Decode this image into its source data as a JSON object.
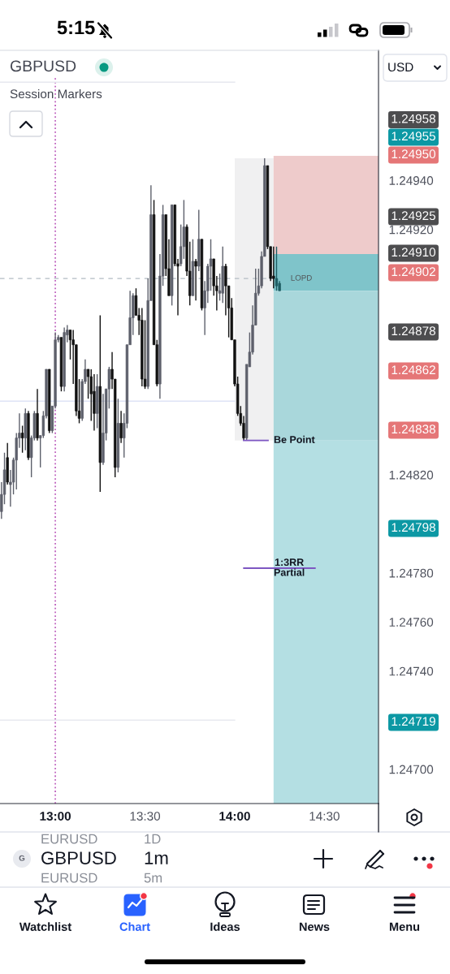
{
  "chart_data": {
    "type": "candlestick",
    "title": "GBPUSD",
    "subtitle": "Session Markers",
    "x": [
      12.7,
      12.7167,
      12.7333,
      12.75,
      12.7667,
      12.7833,
      12.8,
      12.8167,
      12.8333,
      12.85,
      12.8667,
      12.8833,
      12.9,
      12.9167,
      12.9333,
      12.95,
      12.9667,
      12.9833,
      13,
      13.0167,
      13.0333,
      13.05,
      13.0667,
      13.0833,
      13.1,
      13.1167,
      13.1333,
      13.15,
      13.1667,
      13.1833,
      13.2,
      13.2167,
      13.2333,
      13.25,
      13.2667,
      13.2833,
      13.3,
      13.3167,
      13.3333,
      13.35,
      13.3667,
      13.3833,
      13.4,
      13.4167,
      13.4333,
      13.45,
      13.4667,
      13.4833,
      13.5,
      13.5167,
      13.5333,
      13.55,
      13.5667,
      13.5833,
      13.6,
      13.6167,
      13.6333,
      13.65,
      13.6667,
      13.6833,
      13.7,
      13.7167,
      13.7333,
      13.75,
      13.7667,
      13.7833,
      13.8,
      13.8167,
      13.8333,
      13.85,
      13.8667,
      13.8833,
      13.9,
      13.9167,
      13.9333,
      13.95,
      13.9667,
      13.9833,
      14,
      14.0167,
      14.0333,
      14.05,
      14.0667,
      14.0833,
      14.1,
      14.1167,
      14.1333,
      14.15,
      14.1667,
      14.1833,
      14.2,
      14.2167,
      14.2333,
      14.25
    ],
    "ohlc": [
      [
        1.24805,
        1.24817,
        1.24802,
        1.24812
      ],
      [
        1.24812,
        1.24829,
        1.24808,
        1.24822
      ],
      [
        1.24827,
        1.24833,
        1.24816,
        1.24817
      ],
      [
        1.24816,
        1.24822,
        1.24807,
        1.24817
      ],
      [
        1.24817,
        1.24827,
        1.24812,
        1.24826
      ],
      [
        1.24826,
        1.24837,
        1.24814,
        1.24835
      ],
      [
        1.24835,
        1.24845,
        1.24831,
        1.24837
      ],
      [
        1.24837,
        1.2484,
        1.24829,
        1.24835
      ],
      [
        1.24835,
        1.24847,
        1.2483,
        1.24845
      ],
      [
        1.24845,
        1.24846,
        1.24826,
        1.24827
      ],
      [
        1.24827,
        1.24836,
        1.24819,
        1.24835
      ],
      [
        1.24835,
        1.24846,
        1.24834,
        1.24845
      ],
      [
        1.24845,
        1.24855,
        1.24834,
        1.24835
      ],
      [
        1.24835,
        1.24836,
        1.24823,
        1.24836
      ],
      [
        1.24836,
        1.24846,
        1.24835,
        1.24844
      ],
      [
        1.24844,
        1.24863,
        1.24843,
        1.24863
      ],
      [
        1.24863,
        1.24863,
        1.24837,
        1.24838
      ],
      [
        1.24838,
        1.24848,
        1.24837,
        1.24848
      ],
      [
        1.24848,
        1.24878,
        1.24847,
        1.24875
      ],
      [
        1.24875,
        1.24877,
        1.24874,
        1.24876
      ],
      [
        1.24876,
        1.24876,
        1.24854,
        1.24856
      ],
      [
        1.24856,
        1.2488,
        1.24854,
        1.24878
      ],
      [
        1.24877,
        1.24881,
        1.24874,
        1.24879
      ],
      [
        1.24879,
        1.24879,
        1.24867,
        1.24875
      ],
      [
        1.24875,
        1.24879,
        1.24857,
        1.24873
      ],
      [
        1.24873,
        1.24873,
        1.24844,
        1.24846
      ],
      [
        1.24846,
        1.24859,
        1.24841,
        1.24843
      ],
      [
        1.24843,
        1.24859,
        1.24842,
        1.24858
      ],
      [
        1.24858,
        1.24867,
        1.24857,
        1.24863
      ],
      [
        1.24863,
        1.24863,
        1.24851,
        1.2486
      ],
      [
        1.2486,
        1.24863,
        1.24842,
        1.24853
      ],
      [
        1.24854,
        1.24861,
        1.24838,
        1.24845
      ],
      [
        1.24845,
        1.24861,
        1.24839,
        1.24856
      ],
      [
        1.24856,
        1.24885,
        1.24813,
        1.24825
      ],
      [
        1.24825,
        1.24853,
        1.24824,
        1.24837
      ],
      [
        1.24837,
        1.24855,
        1.24834,
        1.24855
      ],
      [
        1.24855,
        1.24864,
        1.24847,
        1.24863
      ],
      [
        1.24863,
        1.2487,
        1.24855,
        1.24859
      ],
      [
        1.24859,
        1.24859,
        1.24819,
        1.24823
      ],
      [
        1.24823,
        1.24851,
        1.24821,
        1.24841
      ],
      [
        1.24841,
        1.24846,
        1.24833,
        1.24835
      ],
      [
        1.24835,
        1.24845,
        1.24827,
        1.24841
      ],
      [
        1.24841,
        1.24873,
        1.24839,
        1.24873
      ],
      [
        1.24873,
        1.24895,
        1.24873,
        1.24884
      ],
      [
        1.24884,
        1.24894,
        1.24877,
        1.24893
      ],
      [
        1.24893,
        1.24896,
        1.24885,
        1.24885
      ],
      [
        1.24885,
        1.24888,
        1.24877,
        1.24883
      ],
      [
        1.24883,
        1.24888,
        1.24856,
        1.24859
      ],
      [
        1.24859,
        1.24883,
        1.24855,
        1.24856
      ],
      [
        1.24856,
        1.249,
        1.24855,
        1.24891
      ],
      [
        1.24891,
        1.24938,
        1.24891,
        1.24926
      ],
      [
        1.24926,
        1.24932,
        1.24873,
        1.24873
      ],
      [
        1.24873,
        1.24875,
        1.24856,
        1.24857
      ],
      [
        1.24857,
        1.2491,
        1.24851,
        1.24901
      ],
      [
        1.24901,
        1.2493,
        1.24897,
        1.24926
      ],
      [
        1.24926,
        1.24926,
        1.24901,
        1.24904
      ],
      [
        1.24904,
        1.24916,
        1.24893,
        1.24893
      ],
      [
        1.24893,
        1.2493,
        1.24889,
        1.2493
      ],
      [
        1.2493,
        1.2493,
        1.24905,
        1.24906
      ],
      [
        1.24906,
        1.24908,
        1.24885,
        1.24905
      ],
      [
        1.24906,
        1.24922,
        1.24905,
        1.24913
      ],
      [
        1.24913,
        1.24932,
        1.24908,
        1.24921
      ],
      [
        1.24921,
        1.24922,
        1.24901,
        1.24903
      ],
      [
        1.24903,
        1.24915,
        1.24889,
        1.24893
      ],
      [
        1.24893,
        1.24916,
        1.24893,
        1.24907
      ],
      [
        1.24907,
        1.24908,
        1.24891,
        1.24905
      ],
      [
        1.24905,
        1.24928,
        1.24903,
        1.24916
      ],
      [
        1.24916,
        1.24916,
        1.24887,
        1.24888
      ],
      [
        1.24888,
        1.24899,
        1.24877,
        1.24895
      ],
      [
        1.24895,
        1.24906,
        1.2489,
        1.24905
      ],
      [
        1.24905,
        1.24916,
        1.24895,
        1.24908
      ],
      [
        1.24908,
        1.24908,
        1.24893,
        1.24897
      ],
      [
        1.24897,
        1.24901,
        1.24887,
        1.24895
      ],
      [
        1.24894,
        1.24902,
        1.24891,
        1.24895
      ],
      [
        1.24894,
        1.24913,
        1.2489,
        1.24905
      ],
      [
        1.24905,
        1.24906,
        1.24885,
        1.24897
      ],
      [
        1.24897,
        1.24897,
        1.24876,
        1.24888
      ],
      [
        1.24888,
        1.24892,
        1.24875,
        1.24875
      ],
      [
        1.24875,
        1.24875,
        1.24856,
        1.24857
      ],
      [
        1.24857,
        1.2486,
        1.24844,
        1.24845
      ],
      [
        1.24845,
        1.24848,
        1.2484,
        1.24841
      ],
      [
        1.24841,
        1.24844,
        1.24834,
        1.24835
      ],
      [
        1.24835,
        1.24865,
        1.24834,
        1.24865
      ],
      [
        1.24864,
        1.24878,
        1.24864,
        1.2487
      ],
      [
        1.2487,
        1.24889,
        1.24869,
        1.24881
      ],
      [
        1.24881,
        1.24904,
        1.24881,
        1.24894
      ],
      [
        1.24894,
        1.24904,
        1.24893,
        1.24897
      ],
      [
        1.24897,
        1.24911,
        1.24896,
        1.24909
      ],
      [
        1.24909,
        1.24949,
        1.24909,
        1.24946
      ],
      [
        1.24946,
        1.24946,
        1.24912,
        1.24913
      ],
      [
        1.24913,
        1.24913,
        1.24899,
        1.249
      ],
      [
        1.24901,
        1.24913,
        1.24896,
        1.249
      ],
      [
        1.249,
        1.24913,
        1.24895,
        1.24897
      ],
      [
        1.24898,
        1.24899,
        1.24895,
        1.24895
      ]
    ],
    "colors": [
      "#5d606b",
      "#5d606b",
      "#111111",
      "#5d606b",
      "#5d606b",
      "#5d606b",
      "#5d606b",
      "#111111",
      "#5d606b",
      "#111111",
      "#5d606b",
      "#5d606b",
      "#111111",
      "#5d606b",
      "#5d606b",
      "#5d606b",
      "#111111",
      "#5d606b",
      "#5d606b",
      "#5d606b",
      "#111111",
      "#5d606b",
      "#5d606b",
      "#111111",
      "#111111",
      "#111111",
      "#111111",
      "#5d606b",
      "#5d606b",
      "#111111",
      "#111111",
      "#111111",
      "#5d606b",
      "#111111",
      "#5d606b",
      "#5d606b",
      "#5d606b",
      "#111111",
      "#111111",
      "#5d606b",
      "#111111",
      "#5d606b",
      "#5d606b",
      "#5d606b",
      "#5d606b",
      "#111111",
      "#111111",
      "#111111",
      "#111111",
      "#5d606b",
      "#5d606b",
      "#111111",
      "#111111",
      "#5d606b",
      "#5d606b",
      "#111111",
      "#111111",
      "#5d606b",
      "#111111",
      "#111111",
      "#5d606b",
      "#5d606b",
      "#111111",
      "#111111",
      "#5d606b",
      "#111111",
      "#5d606b",
      "#111111",
      "#5d606b",
      "#5d606b",
      "#5d606b",
      "#111111",
      "#111111",
      "#5d606b",
      "#5d606b",
      "#111111",
      "#111111",
      "#111111",
      "#111111",
      "#111111",
      "#111111",
      "#111111",
      "#5d606b",
      "#5d606b",
      "#5d606b",
      "#5d606b",
      "#5d606b",
      "#5d606b",
      "#5d606b",
      "#111111",
      "#111111",
      "#111111",
      "#1e5d63",
      "#1e5d63"
    ],
    "xlim": [
      12.6917,
      14.8017
    ],
    "ylim": [
      1.24686,
      1.24993
    ],
    "xticks": [
      {
        "value": 13,
        "label": "13:00"
      },
      {
        "value": 13.5,
        "label": "13:30"
      },
      {
        "value": 14,
        "label": "14:00"
      },
      {
        "value": 14.5,
        "label": "14:30"
      }
    ],
    "yticks": [
      {
        "value": 1.2494,
        "label": "1.24940"
      },
      {
        "value": 1.2492,
        "label": "1.24920"
      },
      {
        "value": 1.2482,
        "label": "1.24820"
      },
      {
        "value": 1.2478,
        "label": "1.24780"
      },
      {
        "value": 1.2476,
        "label": "1.24760"
      },
      {
        "value": 1.2474,
        "label": "1.24740"
      },
      {
        "value": 1.247,
        "label": "1.24700"
      }
    ],
    "bands": [
      {
        "axis": "x",
        "from": 14,
        "to": 14.2167,
        "color": "#f0f0f1"
      },
      {
        "axis": "y",
        "from": 1.2495,
        "to": 1.2491,
        "color": "#eecbcb"
      },
      {
        "axis": "y",
        "from": 1.2491,
        "to": 1.24895,
        "color": "#7fc4ca"
      },
      {
        "axis": "y",
        "from": 1.24895,
        "to": 1.24834,
        "color": "#a9d7db"
      },
      {
        "axis": "y",
        "from": 1.24834,
        "to": 1.24686,
        "color": "#b4dfe3"
      }
    ],
    "ref_lines": [
      {
        "axis": "x",
        "value": 13,
        "color": "#c065c0",
        "line_style": "dotted"
      },
      {
        "axis": "y",
        "value": 1.2498,
        "color": "#e6e8ef",
        "line_style": "solid"
      },
      {
        "axis": "y",
        "value": 1.2485,
        "color": "#dfe4f6",
        "line_style": "solid"
      },
      {
        "axis": "y",
        "value": 1.2472,
        "color": "#e8eaf0",
        "line_style": "solid"
      },
      {
        "axis": "y",
        "value": 1.249,
        "label": "LOPD",
        "color": "#b3bcc4",
        "line_style": "dashed"
      }
    ],
    "annotations": [
      "5:15",
      "USD",
      "EURUSD",
      "1D",
      "GBPUSD",
      "1m",
      "EURUSD",
      "5m",
      "G",
      "Watchlist",
      "Chart",
      "Ideas",
      "News",
      "Menu",
      "1:3RR\nPartial",
      "1.24958",
      "1.24955",
      "1.24950",
      "1.24925",
      "1.24910",
      "1.24902",
      "1.24878",
      "1.24862",
      "1.24838",
      "1.24798",
      "1.24719",
      {
        "text": "Be Point",
        "x": 14.05,
        "y": 1.24834
      }
    ]
  }
}
